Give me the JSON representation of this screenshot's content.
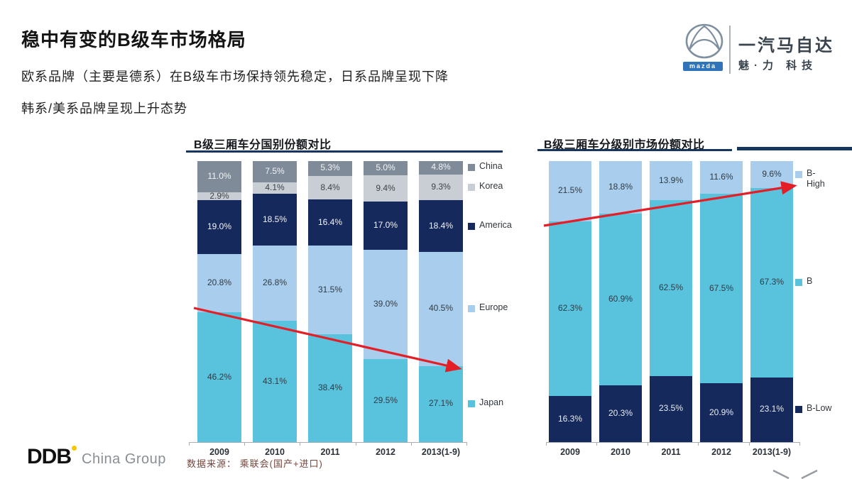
{
  "header": {
    "title": "稳中有变的B级车市场格局",
    "subtitle1": "欧系品牌（主要是德系）在B级车市场保持领先稳定，日系品牌呈现下降",
    "subtitle2": "韩系/美系品牌呈现上升态势"
  },
  "brand": {
    "mazda_badge": "mazda",
    "company": "一汽马自达",
    "tagline": "魅·力 科技"
  },
  "source": "数据来源： 乘联会(国产+进口)",
  "footer_logo": {
    "ddb": "DDB",
    "group": "China Group"
  },
  "colors": {
    "accent_red": "#e41e26",
    "underline_navy": "#17365d",
    "teal": "#59c2dd",
    "light_blue": "#a9cdec",
    "navy": "#16295c",
    "gray": "#7f8b98",
    "light_gray": "#c9ced4",
    "ddb_dot": "#f6c700",
    "mazda_blue": "#2f74b8"
  },
  "chart_data": [
    {
      "type": "bar",
      "stacked": true,
      "title": "B级三厢车分国别份额对比",
      "categories": [
        "2009",
        "2010",
        "2011",
        "2012",
        "2013(1-9)"
      ],
      "series": [
        {
          "name": "Japan",
          "color": "#59c2dd",
          "label_color": "#2f3b44",
          "values": [
            46.2,
            43.1,
            38.4,
            29.5,
            27.1
          ],
          "labels": [
            "46.2%",
            "43.1%",
            "38.4%",
            "29.5%",
            "27.1%"
          ]
        },
        {
          "name": "Europe",
          "color": "#a9cdec",
          "label_color": "#2f3b44",
          "values": [
            20.8,
            26.8,
            31.5,
            39.0,
            40.5
          ],
          "labels": [
            "20.8%",
            "26.8%",
            "31.5%",
            "39.0%",
            "40.5%"
          ]
        },
        {
          "name": "America",
          "color": "#16295c",
          "label_color": "#f2f4f7",
          "values": [
            19.0,
            18.5,
            16.4,
            17.0,
            18.4
          ],
          "labels": [
            "19.0%",
            "18.5%",
            "16.4%",
            "17.0%",
            "18.4%"
          ]
        },
        {
          "name": "Korea",
          "color": "#c9ced4",
          "label_color": "#3c434b",
          "values": [
            2.9,
            4.1,
            8.4,
            9.4,
            9.3
          ],
          "labels": [
            "2.9%",
            "4.1%",
            "8.4%",
            "9.4%",
            "9.3%"
          ]
        },
        {
          "name": "China",
          "color": "#7f8b98",
          "label_color": "#f2f4f7",
          "values": [
            11.0,
            7.5,
            5.3,
            5.0,
            4.8
          ],
          "labels": [
            "11.0%",
            "7.5%",
            "5.3%",
            "5.0%",
            "4.8%"
          ]
        }
      ],
      "ylim": [
        0,
        100
      ],
      "legend_position": "right",
      "annotation": "red arrow trending down across Japan share"
    },
    {
      "type": "bar",
      "stacked": true,
      "title": "B级三厢车分级别市场份额对比",
      "categories": [
        "2009",
        "2010",
        "2011",
        "2012",
        "2013(1-9)"
      ],
      "series": [
        {
          "name": "B-Low",
          "color": "#16295c",
          "label_color": "#e8ecf2",
          "values": [
            16.3,
            20.3,
            23.5,
            20.9,
            23.1
          ],
          "labels": [
            "16.3%",
            "20.3%",
            "23.5%",
            "20.9%",
            "23.1%"
          ]
        },
        {
          "name": "B",
          "color": "#59c2dd",
          "label_color": "#2f3b44",
          "values": [
            62.3,
            60.9,
            62.5,
            67.5,
            67.3
          ],
          "labels": [
            "62.3%",
            "60.9%",
            "62.5%",
            "67.5%",
            "67.3%"
          ]
        },
        {
          "name": "B-High",
          "color": "#a9cdec",
          "label_color": "#2f3b44",
          "values": [
            21.5,
            18.8,
            13.9,
            11.6,
            9.6
          ],
          "labels": [
            "21.5%",
            "18.8%",
            "13.9%",
            "11.6%",
            "9.6%"
          ]
        }
      ],
      "ylim": [
        0,
        100
      ],
      "legend_position": "right",
      "annotation": "red arrow trending up across B-High boundary"
    }
  ]
}
